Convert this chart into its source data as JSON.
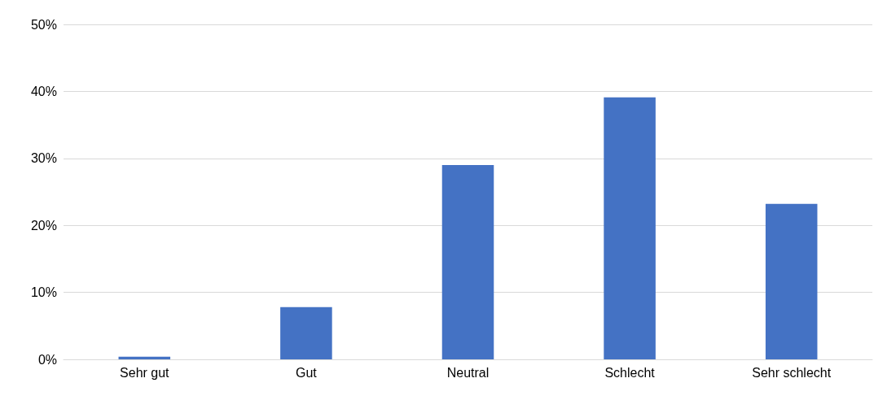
{
  "chart_data": {
    "type": "bar",
    "categories": [
      "Sehr gut",
      "Gut",
      "Neutral",
      "Schlecht",
      "Sehr schlecht"
    ],
    "values": [
      0.4,
      7.8,
      29.0,
      39.1,
      23.2
    ],
    "color": "#4472c4",
    "ylim": [
      0,
      50
    ],
    "yticks": [
      {
        "value": 0,
        "label": "0%"
      },
      {
        "value": 10,
        "label": "10%"
      },
      {
        "value": 20,
        "label": "20%"
      },
      {
        "value": 30,
        "label": "30%"
      },
      {
        "value": 40,
        "label": "40%"
      },
      {
        "value": 50,
        "label": "50%"
      }
    ],
    "grid": "y"
  }
}
